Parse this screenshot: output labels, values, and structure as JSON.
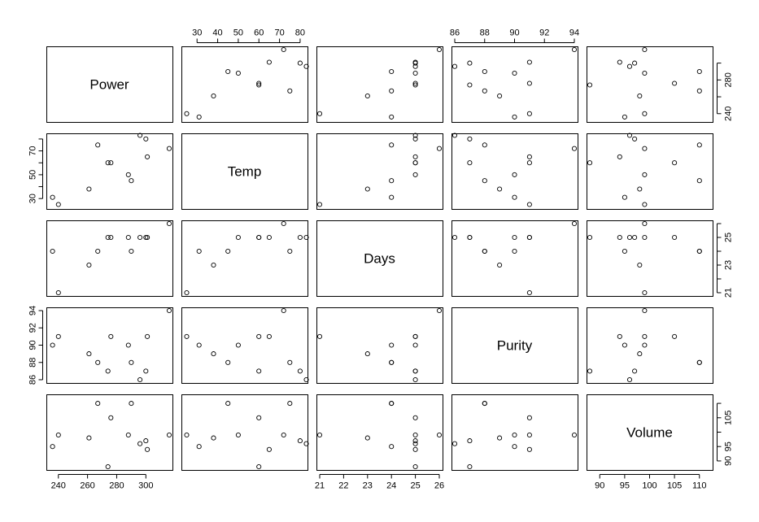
{
  "chart_data": {
    "type": "scatter",
    "subtype": "scatterplot-matrix",
    "variables": [
      "Power",
      "Temp",
      "Days",
      "Purity",
      "Volume"
    ],
    "ranges": {
      "Power": [
        234,
        316
      ],
      "Temp": [
        24,
        82
      ],
      "Days": [
        21,
        26
      ],
      "Purity": [
        86,
        94
      ],
      "Volume": [
        88,
        112
      ]
    },
    "ticks": {
      "Power": {
        "values": [
          240,
          260,
          280,
          300
        ],
        "labels": [
          "240",
          "260",
          "280",
          "300"
        ]
      },
      "Temp": {
        "values": [
          30,
          40,
          50,
          60,
          70,
          80
        ],
        "labels": [
          "30",
          "40",
          "50",
          "60",
          "70",
          "80"
        ]
      },
      "Days": {
        "values": [
          21,
          22,
          23,
          24,
          25,
          26
        ],
        "labels": [
          "21",
          "22",
          "23",
          "24",
          "25",
          "26"
        ]
      },
      "Purity": {
        "values": [
          86,
          88,
          90,
          92,
          94
        ],
        "labels": [
          "86",
          "88",
          "90",
          "92",
          "94"
        ]
      },
      "Volume": {
        "values": [
          90,
          95,
          100,
          105,
          110
        ],
        "labels": [
          "90",
          "95",
          "100",
          "105",
          "110"
        ]
      }
    },
    "right_ticks": {
      "Power": {
        "values": [
          240,
          260,
          280,
          300
        ],
        "labels": [
          "240",
          "",
          "280",
          ""
        ]
      },
      "Days": {
        "values": [
          21,
          22,
          23,
          24,
          25,
          26
        ],
        "labels": [
          "21",
          "",
          "23",
          "",
          "25",
          ""
        ]
      },
      "Volume": {
        "values": [
          90,
          95,
          100,
          105,
          110
        ],
        "labels": [
          "90",
          "95",
          "",
          "105",
          ""
        ]
      }
    },
    "left_ticks": {
      "Temp": {
        "values": [
          30,
          40,
          50,
          60,
          70,
          80
        ],
        "labels": [
          "30",
          "",
          "50",
          "",
          "70",
          ""
        ]
      },
      "Purity": {
        "values": [
          86,
          88,
          90,
          92,
          94
        ],
        "labels": [
          "86",
          "88",
          "90",
          "92",
          "94"
        ]
      }
    },
    "data": [
      {
        "Power": 236,
        "Temp": 31,
        "Days": 24,
        "Purity": 90,
        "Volume": 95
      },
      {
        "Power": 240,
        "Temp": 25,
        "Days": 21,
        "Purity": 91,
        "Volume": 99
      },
      {
        "Power": 261,
        "Temp": 38,
        "Days": 23,
        "Purity": 89,
        "Volume": 98
      },
      {
        "Power": 267,
        "Temp": 75,
        "Days": 24,
        "Purity": 88,
        "Volume": 110
      },
      {
        "Power": 274,
        "Temp": 60,
        "Days": 25,
        "Purity": 87,
        "Volume": 88
      },
      {
        "Power": 276,
        "Temp": 60,
        "Days": 25,
        "Purity": 91,
        "Volume": 105
      },
      {
        "Power": 288,
        "Temp": 50,
        "Days": 25,
        "Purity": 90,
        "Volume": 99
      },
      {
        "Power": 290,
        "Temp": 45,
        "Days": 24,
        "Purity": 88,
        "Volume": 110
      },
      {
        "Power": 296,
        "Temp": 83,
        "Days": 25,
        "Purity": 86,
        "Volume": 96
      },
      {
        "Power": 300,
        "Temp": 80,
        "Days": 25,
        "Purity": 87,
        "Volume": 97
      },
      {
        "Power": 301,
        "Temp": 65,
        "Days": 25,
        "Purity": 91,
        "Volume": 94
      },
      {
        "Power": 316,
        "Temp": 72,
        "Days": 26,
        "Purity": 94,
        "Volume": 99
      }
    ]
  }
}
